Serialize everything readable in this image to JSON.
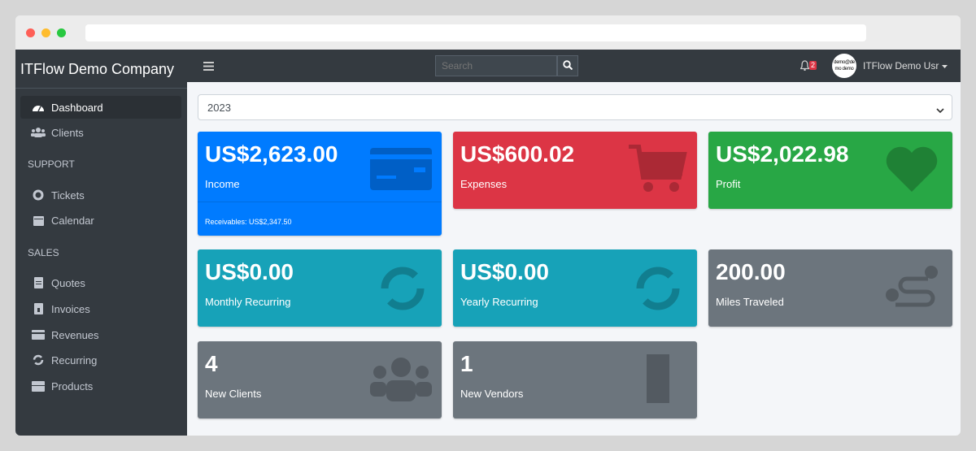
{
  "sidebar": {
    "brand": "ITFlow Demo Company",
    "items": [
      {
        "label": "Dashboard",
        "icon": "tachometer-icon"
      },
      {
        "label": "Clients",
        "icon": "users-icon"
      }
    ],
    "support_header": "SUPPORT",
    "support": [
      {
        "label": "Tickets",
        "icon": "life-ring-icon"
      },
      {
        "label": "Calendar",
        "icon": "calendar-icon"
      }
    ],
    "sales_header": "SALES",
    "sales": [
      {
        "label": "Quotes",
        "icon": "file-icon"
      },
      {
        "label": "Invoices",
        "icon": "invoice-icon"
      },
      {
        "label": "Revenues",
        "icon": "credit-card-icon"
      },
      {
        "label": "Recurring",
        "icon": "sync-icon"
      },
      {
        "label": "Products",
        "icon": "box-icon"
      }
    ]
  },
  "topbar": {
    "search_placeholder": "Search",
    "notifications": "2",
    "avatar_text": "demo@demo demo",
    "user": "ITFlow Demo Usr"
  },
  "year": "2023",
  "cards": [
    {
      "value": "US$2,623.00",
      "label": "Income",
      "footer": "Receivables: US$2,347.50",
      "color": "#007bff"
    },
    {
      "value": "US$600.02",
      "label": "Expenses",
      "color": "#dc3545"
    },
    {
      "value": "US$2,022.98",
      "label": "Profit",
      "color": "#28a745"
    },
    {
      "value": "US$0.00",
      "label": "Monthly Recurring",
      "color": "#17a2b8"
    },
    {
      "value": "US$0.00",
      "label": "Yearly Recurring",
      "color": "#17a2b8"
    },
    {
      "value": "200.00",
      "label": "Miles Traveled",
      "color": "#6c757d"
    },
    {
      "value": "4",
      "label": "New Clients",
      "color": "#6c757d"
    },
    {
      "value": "1",
      "label": "New Vendors",
      "color": "#6c757d"
    }
  ]
}
